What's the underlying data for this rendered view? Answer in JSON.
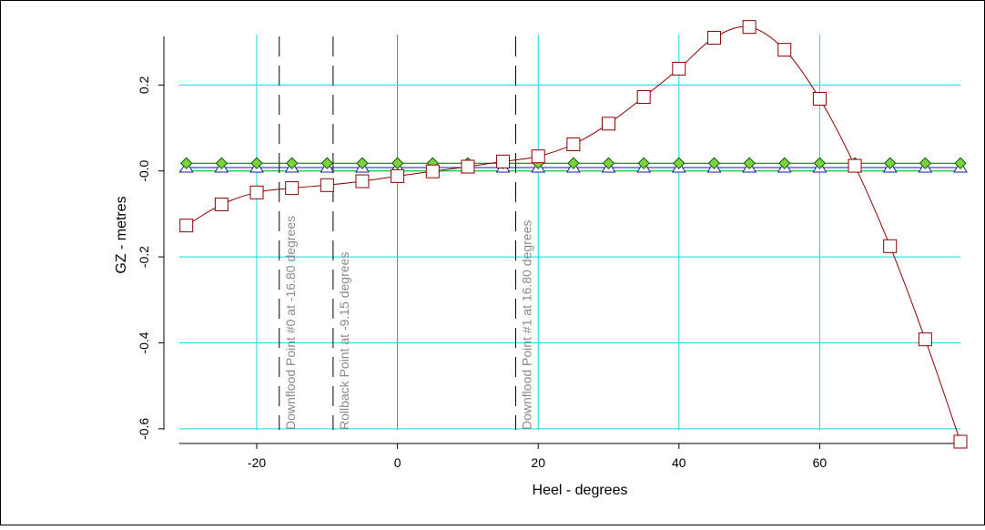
{
  "chart_data": {
    "type": "line",
    "xlabel": "Heel - degrees",
    "ylabel": "GZ - metres",
    "xlim": [
      -31,
      80
    ],
    "ylim": [
      -0.63,
      0.33
    ],
    "xticks": [
      -20,
      0,
      20,
      40,
      60
    ],
    "xtick_labels": [
      "-20",
      "0",
      "20",
      "40",
      "60"
    ],
    "yticks": [
      -0.6,
      -0.4,
      -0.2,
      0.0,
      0.2
    ],
    "ytick_labels": [
      "-0.6",
      "-0.4",
      "-0.2",
      "-0.0",
      "0.2"
    ],
    "grid": true,
    "colors": {
      "grid": "#00e0e0",
      "zero_line": "#00cc00",
      "gz_curve": "#8b0000",
      "triangle_series": "#1a1aaa",
      "diamond_series": "#006600",
      "dashed_lines": "#000000",
      "vertical_label_text": "#8a8a8a"
    },
    "x": [
      -30,
      -25,
      -20,
      -15,
      -10,
      -5,
      0,
      5,
      10,
      15,
      20,
      25,
      30,
      35,
      40,
      45,
      50,
      55,
      60,
      65,
      70,
      75,
      80
    ],
    "series": [
      {
        "marker": "square",
        "color": "#8b0000",
        "values": [
          -0.127,
          -0.078,
          -0.05,
          -0.04,
          -0.033,
          -0.024,
          -0.012,
          -0.001,
          0.01,
          0.022,
          0.034,
          0.062,
          0.11,
          0.172,
          0.238,
          0.31,
          0.335,
          0.282,
          0.168,
          0.012,
          -0.175,
          -0.392,
          -0.63
        ]
      },
      {
        "marker": "triangle",
        "color": "#1a1aaa",
        "values": [
          0.008,
          0.008,
          0.008,
          0.008,
          0.008,
          0.008,
          0.008,
          0.008,
          0.008,
          0.008,
          0.008,
          0.008,
          0.008,
          0.008,
          0.008,
          0.008,
          0.008,
          0.008,
          0.008,
          0.008,
          0.008,
          0.008,
          0.008
        ]
      },
      {
        "marker": "diamond",
        "color": "#006600",
        "values": [
          0.018,
          0.018,
          0.018,
          0.018,
          0.018,
          0.018,
          0.018,
          0.018,
          0.018,
          0.018,
          0.018,
          0.018,
          0.018,
          0.018,
          0.018,
          0.018,
          0.018,
          0.018,
          0.018,
          0.018,
          0.018,
          0.018,
          0.018
        ]
      }
    ],
    "vertical_lines": [
      {
        "x": -16.8,
        "label": "Downflood Point #0 at -16.80 degrees"
      },
      {
        "x": -9.15,
        "label": "Rollback Point at -9.15 degrees"
      },
      {
        "x": 16.8,
        "label": "Downflood Point #1 at 16.80 degrees"
      }
    ]
  }
}
